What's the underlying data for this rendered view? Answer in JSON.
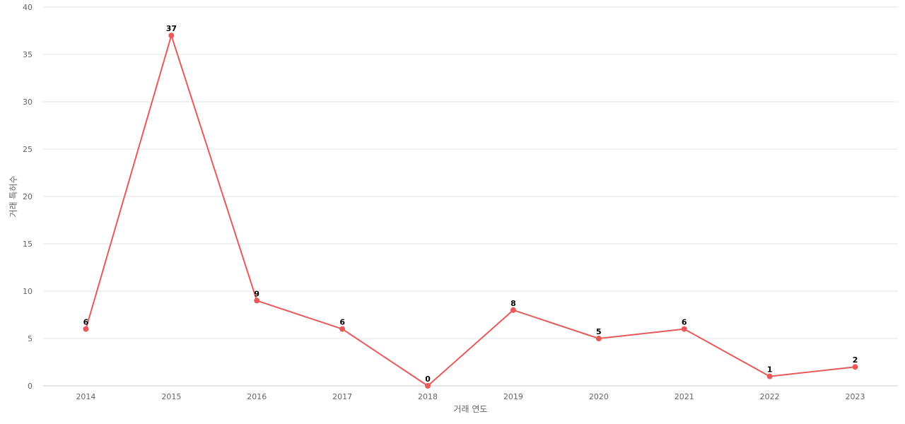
{
  "chart_data": {
    "type": "line",
    "title": "",
    "xlabel": "거래 연도",
    "ylabel": "거래 특허수",
    "categories": [
      "2014",
      "2015",
      "2016",
      "2017",
      "2018",
      "2019",
      "2020",
      "2021",
      "2022",
      "2023"
    ],
    "series": [
      {
        "values": [
          6,
          37,
          9,
          6,
          0,
          8,
          5,
          6,
          1,
          2
        ],
        "color": "#e85a5a"
      }
    ],
    "ylim": [
      0,
      40
    ],
    "yticks": [
      0,
      5,
      10,
      15,
      20,
      25,
      30,
      35,
      40
    ],
    "grid": true,
    "legend": "none",
    "data_labels": true
  }
}
